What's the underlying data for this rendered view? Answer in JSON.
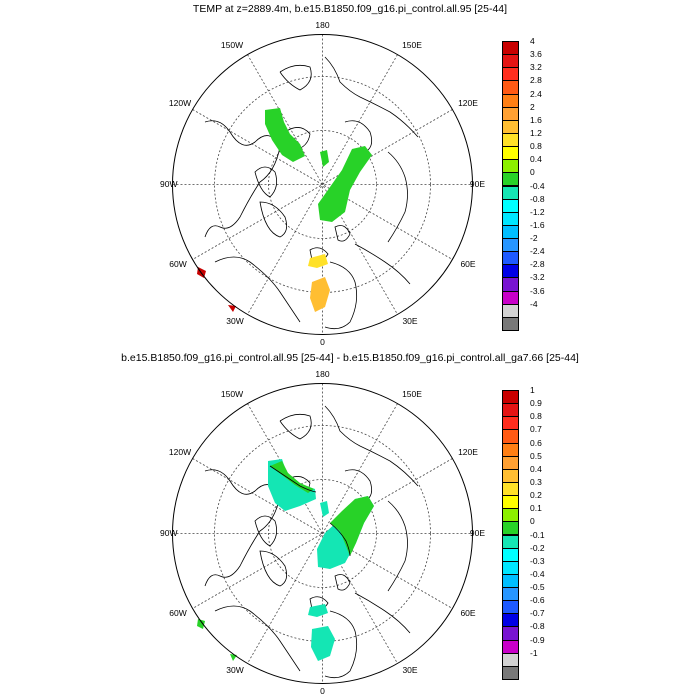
{
  "panels": [
    {
      "title": "TEMP at z=2889.4m, b.e15.B1850.f09_g16.pi_control.all.95 [25-44]",
      "lon_labels": {
        "top": "180",
        "bottom": "0",
        "left": "90W",
        "right": "90E",
        "ul1": "150W",
        "ul2": "120W",
        "ur1": "150E",
        "ur2": "120E",
        "ll1": "60W",
        "ll2": "30W",
        "lr1": "60E",
        "lr2": "30E"
      },
      "colorbar": {
        "labels": [
          "4",
          "3.6",
          "3.2",
          "2.8",
          "2.4",
          "2",
          "1.6",
          "1.2",
          "0.8",
          "0.4",
          "0",
          "-0.4",
          "-0.8",
          "-1.2",
          "-1.6",
          "-2",
          "-2.4",
          "-2.8",
          "-3.2",
          "-3.6",
          "-4"
        ],
        "colors": [
          "#c80000",
          "#e41414",
          "#ff2d1e",
          "#ff5a14",
          "#ff7f14",
          "#ffa032",
          "#ffbe32",
          "#ffe128",
          "#ffff00",
          "#8cf000",
          "#28d228",
          "#14e6b4",
          "#00ffff",
          "#00e6ff",
          "#00beff",
          "#2896ff",
          "#1e5aff",
          "#0000e6",
          "#7814d2",
          "#c800c8",
          "#d2d2d2",
          "#787878"
        ]
      }
    },
    {
      "title": "b.e15.B1850.f09_g16.pi_control.all.95 [25-44] - b.e15.B1850.f09_g16.pi_control.all_ga7.66 [25-44]",
      "lon_labels": {
        "top": "180",
        "bottom": "0",
        "left": "90W",
        "right": "90E",
        "ul1": "150W",
        "ul2": "120W",
        "ur1": "150E",
        "ur2": "120E",
        "ll1": "60W",
        "ll2": "30W",
        "lr1": "60E",
        "lr2": "30E"
      },
      "colorbar": {
        "labels": [
          "1",
          "0.9",
          "0.8",
          "0.7",
          "0.6",
          "0.5",
          "0.4",
          "0.3",
          "0.2",
          "0.1",
          "0",
          "-0.1",
          "-0.2",
          "-0.3",
          "-0.4",
          "-0.5",
          "-0.6",
          "-0.7",
          "-0.8",
          "-0.9",
          "-1"
        ],
        "colors": [
          "#c80000",
          "#e41414",
          "#ff2d1e",
          "#ff5a14",
          "#ff7f14",
          "#ffa032",
          "#ffbe32",
          "#ffe128",
          "#ffff00",
          "#8cf000",
          "#28d228",
          "#14e6b4",
          "#00ffff",
          "#00e6ff",
          "#00beff",
          "#2896ff",
          "#1e5aff",
          "#0000e6",
          "#7814d2",
          "#c800c8",
          "#d2d2d2",
          "#787878"
        ]
      }
    }
  ]
}
